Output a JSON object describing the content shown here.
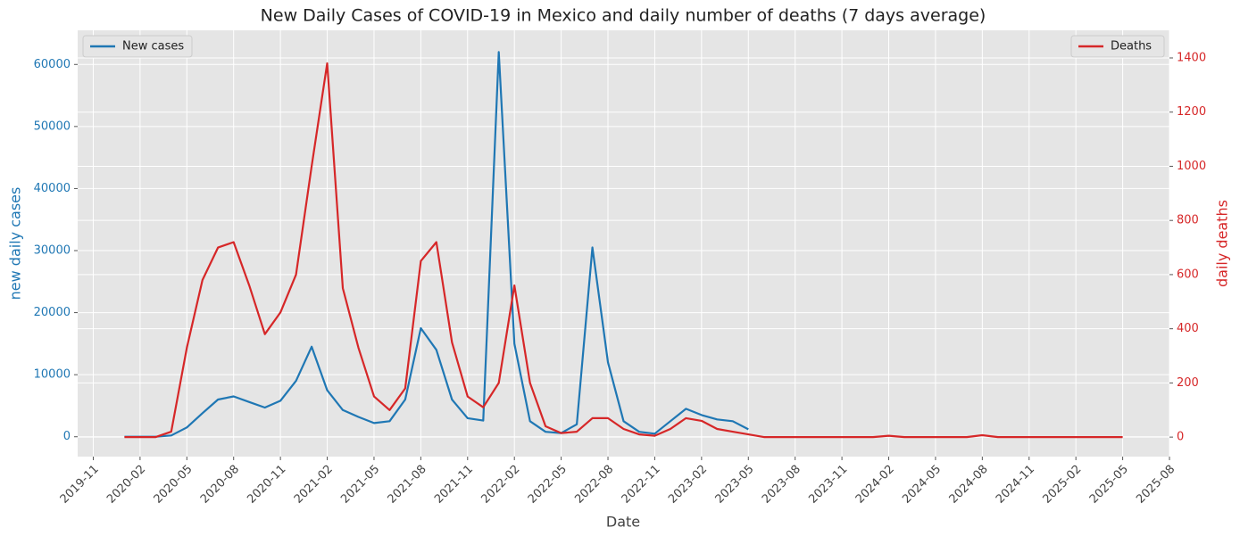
{
  "chart_data": {
    "type": "line",
    "title": "New Daily Cases of COVID-19 in Mexico and daily number of deaths (7 days average)",
    "xlabel": "Date",
    "ylabel": "new daily cases",
    "y2label": "daily deaths",
    "x": [
      "2020-01",
      "2020-02",
      "2020-03",
      "2020-04",
      "2020-05",
      "2020-06",
      "2020-07",
      "2020-08",
      "2020-09",
      "2020-10",
      "2020-11",
      "2020-12",
      "2021-01",
      "2021-02",
      "2021-03",
      "2021-04",
      "2021-05",
      "2021-06",
      "2021-07",
      "2021-08",
      "2021-09",
      "2021-10",
      "2021-11",
      "2021-12",
      "2022-01",
      "2022-02",
      "2022-03",
      "2022-04",
      "2022-05",
      "2022-06",
      "2022-07",
      "2022-08",
      "2022-09",
      "2022-10",
      "2022-11",
      "2022-12",
      "2023-01",
      "2023-02",
      "2023-03",
      "2023-04",
      "2023-05",
      "2023-06",
      "2023-07",
      "2023-08",
      "2023-09",
      "2023-10",
      "2023-11",
      "2023-12",
      "2024-01",
      "2024-02",
      "2024-03",
      "2024-04",
      "2024-05",
      "2024-06",
      "2024-07",
      "2024-08",
      "2024-09",
      "2024-10",
      "2024-11",
      "2024-12",
      "2025-01",
      "2025-02",
      "2025-03",
      "2025-04",
      "2025-05"
    ],
    "series": [
      {
        "name": "New cases",
        "color": "#1f77b4",
        "axis": "y",
        "values": [
          0,
          0,
          0,
          200,
          1500,
          3800,
          6000,
          6500,
          5600,
          4700,
          5800,
          9000,
          14500,
          7500,
          4300,
          3200,
          2200,
          2500,
          6000,
          17500,
          14000,
          6000,
          3000,
          2600,
          62000,
          15000,
          2500,
          800,
          600,
          2000,
          30500,
          12000,
          2500,
          800,
          500,
          2500,
          4500,
          3500,
          2800,
          2500,
          1200,
          null,
          null,
          null,
          null,
          null,
          null,
          null,
          null,
          null,
          null,
          null,
          null,
          null,
          null,
          null,
          null,
          null,
          null,
          null,
          null,
          null,
          null,
          null,
          null
        ]
      },
      {
        "name": "Deaths",
        "color": "#d62728",
        "axis": "y2",
        "values": [
          0,
          0,
          0,
          20,
          330,
          580,
          700,
          720,
          560,
          380,
          460,
          600,
          1000,
          1380,
          550,
          330,
          150,
          100,
          180,
          650,
          720,
          350,
          150,
          110,
          200,
          560,
          200,
          40,
          15,
          20,
          70,
          70,
          30,
          10,
          5,
          30,
          70,
          60,
          30,
          20,
          10,
          0,
          0,
          0,
          0,
          0,
          0,
          0,
          0,
          5,
          0,
          0,
          0,
          0,
          0,
          7,
          0,
          0,
          0,
          0,
          0,
          0,
          0,
          0,
          0
        ]
      }
    ],
    "xlim": [
      "2019-10",
      "2025-08"
    ],
    "xticks": [
      "2019-11",
      "2020-02",
      "2020-05",
      "2020-08",
      "2020-11",
      "2021-02",
      "2021-05",
      "2021-08",
      "2021-11",
      "2022-02",
      "2022-05",
      "2022-08",
      "2022-11",
      "2023-02",
      "2023-05",
      "2023-08",
      "2023-11",
      "2024-02",
      "2024-05",
      "2024-08",
      "2024-11",
      "2025-02",
      "2025-05",
      "2025-08"
    ],
    "ylim": [
      -3200,
      65500
    ],
    "yticks": [
      0,
      10000,
      20000,
      30000,
      40000,
      50000,
      60000
    ],
    "y2lim": [
      -72,
      1502
    ],
    "y2ticks": [
      0,
      200,
      400,
      600,
      800,
      1000,
      1200,
      1400
    ],
    "grid": true,
    "legend_y": "upper left",
    "legend_y2": "upper right"
  }
}
